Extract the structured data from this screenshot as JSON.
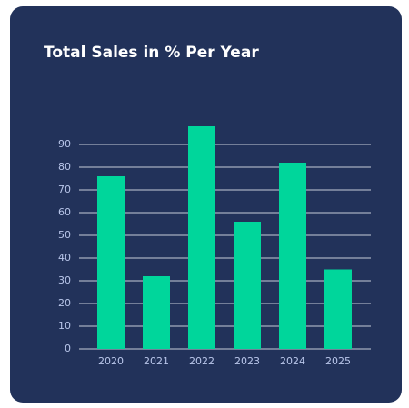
{
  "chart_data": {
    "type": "bar",
    "title": "Total Sales in % Per Year",
    "categories": [
      "2020",
      "2021",
      "2022",
      "2023",
      "2024",
      "2025"
    ],
    "values": [
      76,
      32,
      98,
      56,
      82,
      35
    ],
    "color": "#00d69b",
    "ylim": [
      0,
      100
    ],
    "yticks": [
      0,
      10,
      20,
      30,
      40,
      50,
      60,
      70,
      80,
      90
    ],
    "grid": true
  }
}
